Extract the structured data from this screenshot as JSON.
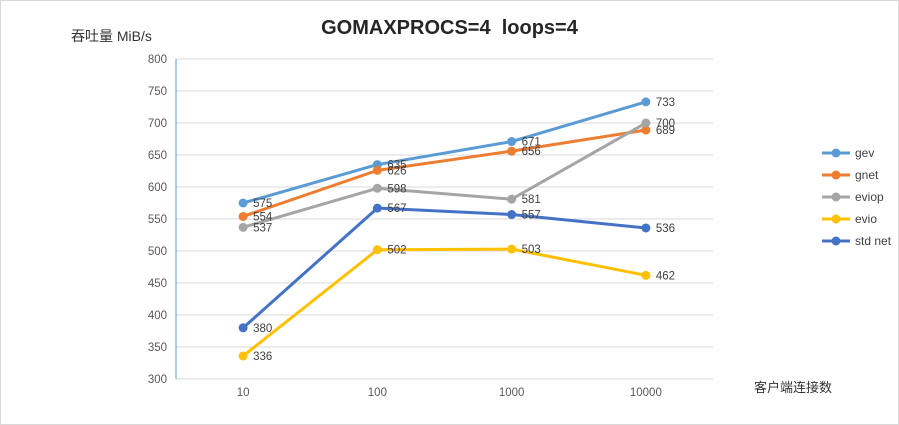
{
  "chart_data": {
    "type": "line",
    "title": "GOMAXPROCS=4  loops=4",
    "ylabel": "吞吐量 MiB/s",
    "xlabel": "客户端连接数",
    "categories": [
      "10",
      "100",
      "1000",
      "10000"
    ],
    "series": [
      {
        "name": "gev",
        "color": "#5B9BD5",
        "values": [
          575,
          635,
          671,
          733
        ]
      },
      {
        "name": "gnet",
        "color": "#ED7D31",
        "values": [
          554,
          626,
          656,
          689
        ]
      },
      {
        "name": "eviop",
        "color": "#A5A5A5",
        "values": [
          537,
          598,
          581,
          700
        ]
      },
      {
        "name": "evio",
        "color": "#FFC000",
        "values": [
          336,
          502,
          503,
          462
        ]
      },
      {
        "name": "std net",
        "color": "#4472C4",
        "values": [
          380,
          567,
          557,
          536
        ]
      }
    ],
    "ylim": [
      300,
      800
    ],
    "y_step": 50,
    "grid": true,
    "data_labels": true,
    "legend_position": "right"
  },
  "colors": {
    "gridline": "#d9d9d9",
    "x_axis_line": "#d9d9d9",
    "y_axis_line": "#5B9BD5",
    "tick_text": "#595959",
    "data_label_text": "#404040",
    "frame_border": "#d9d9d9"
  }
}
